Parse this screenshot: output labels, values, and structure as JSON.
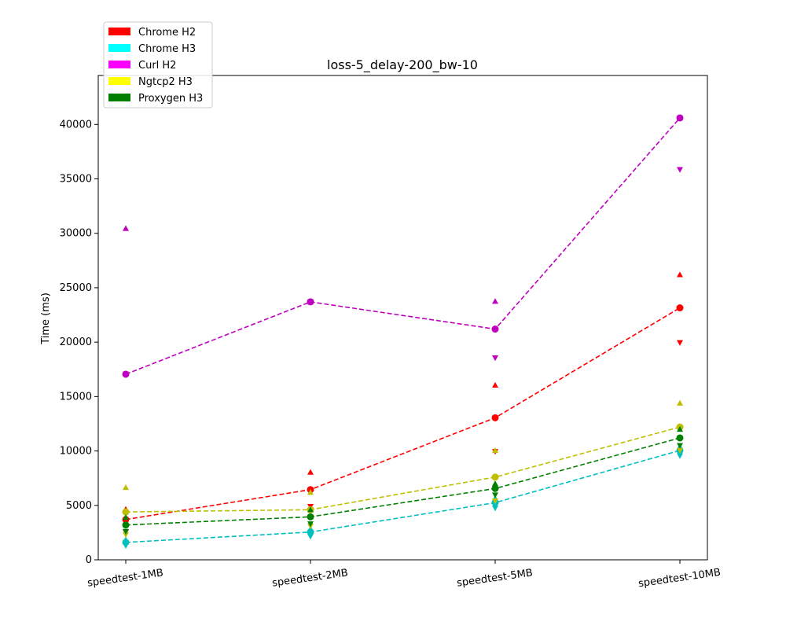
{
  "chart_data": {
    "type": "line",
    "title": "loss-5_delay-200_bw-10",
    "xlabel": "",
    "ylabel": "Time (ms)",
    "categories": [
      "speedtest-1MB",
      "speedtest-2MB",
      "speedtest-5MB",
      "speedtest-10MB"
    ],
    "ylim": [
      0,
      44500
    ],
    "yticks": [
      0,
      5000,
      10000,
      15000,
      20000,
      25000,
      30000,
      35000,
      40000
    ],
    "grid": false,
    "legend_position": "top-left",
    "series": [
      {
        "name": "Chrome H2",
        "color": "#ff0000",
        "line_color": "#ff0000",
        "mean": [
          3700,
          6450,
          13050,
          23150
        ],
        "max": [
          4650,
          8050,
          16050,
          26200
        ],
        "min": [
          2550,
          4900,
          9950,
          19950
        ]
      },
      {
        "name": "Chrome H3",
        "color": "#00ffff",
        "line_color": "#00bfbf",
        "mean": [
          1600,
          2550,
          5250,
          10050
        ],
        "max": [
          1850,
          2850,
          5650,
          10400
        ],
        "min": [
          1300,
          2150,
          4750,
          9550
        ]
      },
      {
        "name": "Curl H2",
        "color": "#ff00ff",
        "line_color": "#bf00bf",
        "mean": [
          17050,
          23700,
          21200,
          40600
        ],
        "max": [
          30450,
          23700,
          23750,
          40600
        ],
        "min": [
          17050,
          23700,
          18550,
          35850
        ]
      },
      {
        "name": "Ngtcp2 H3",
        "color": "#ffff00",
        "line_color": "#bfbf00",
        "mean": [
          4400,
          4600,
          7600,
          12200
        ],
        "max": [
          6650,
          6200,
          10050,
          14400
        ],
        "min": [
          2300,
          3100,
          5400,
          10050
        ]
      },
      {
        "name": "Proxygen H3",
        "color": "#008000",
        "line_color": "#008000",
        "mean": [
          3200,
          3950,
          6550,
          11200
        ],
        "max": [
          3900,
          4600,
          7000,
          12000
        ],
        "min": [
          2600,
          3300,
          5950,
          10500
        ]
      }
    ]
  }
}
